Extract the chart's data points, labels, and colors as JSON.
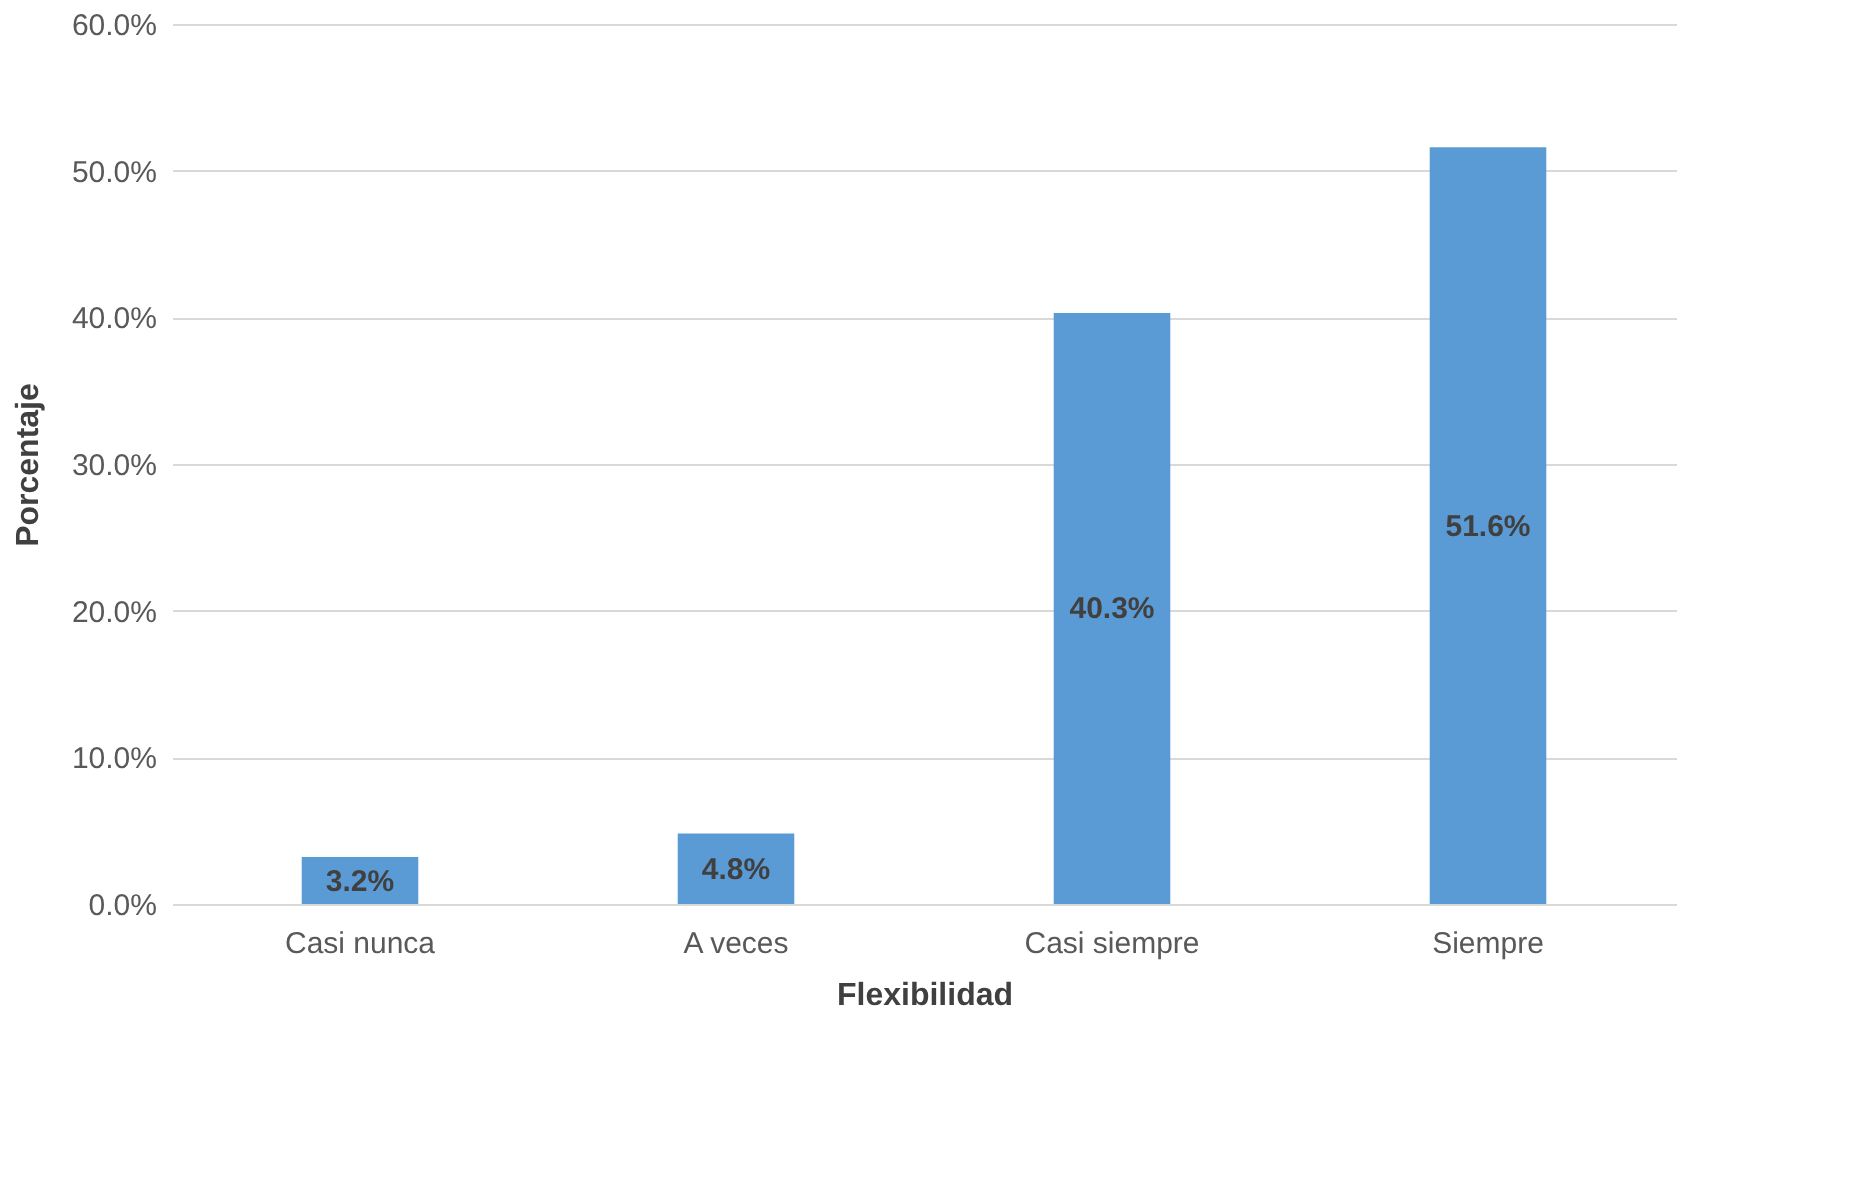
{
  "chart_data": {
    "type": "bar",
    "xlabel": "Flexibilidad",
    "ylabel": "Porcentaje",
    "categories": [
      "Casi nunca",
      "A  veces",
      "Casi siempre",
      "Siempre"
    ],
    "values": [
      3.2,
      4.8,
      40.3,
      51.6
    ],
    "color": "#5b9bd5",
    "value_labels": [
      "3.2%",
      "4.8%",
      "40.3%",
      "51.6%"
    ],
    "ylim": [
      0,
      60
    ],
    "yticks": [
      {
        "value": 0,
        "label": "0.0%"
      },
      {
        "value": 10,
        "label": "10.0%"
      },
      {
        "value": 20,
        "label": "20.0%"
      },
      {
        "value": 30,
        "label": "30.0%"
      },
      {
        "value": 40,
        "label": "40.0%"
      },
      {
        "value": 50,
        "label": "50.0%"
      },
      {
        "value": 60,
        "label": "60.0%"
      }
    ],
    "grid": "y"
  }
}
